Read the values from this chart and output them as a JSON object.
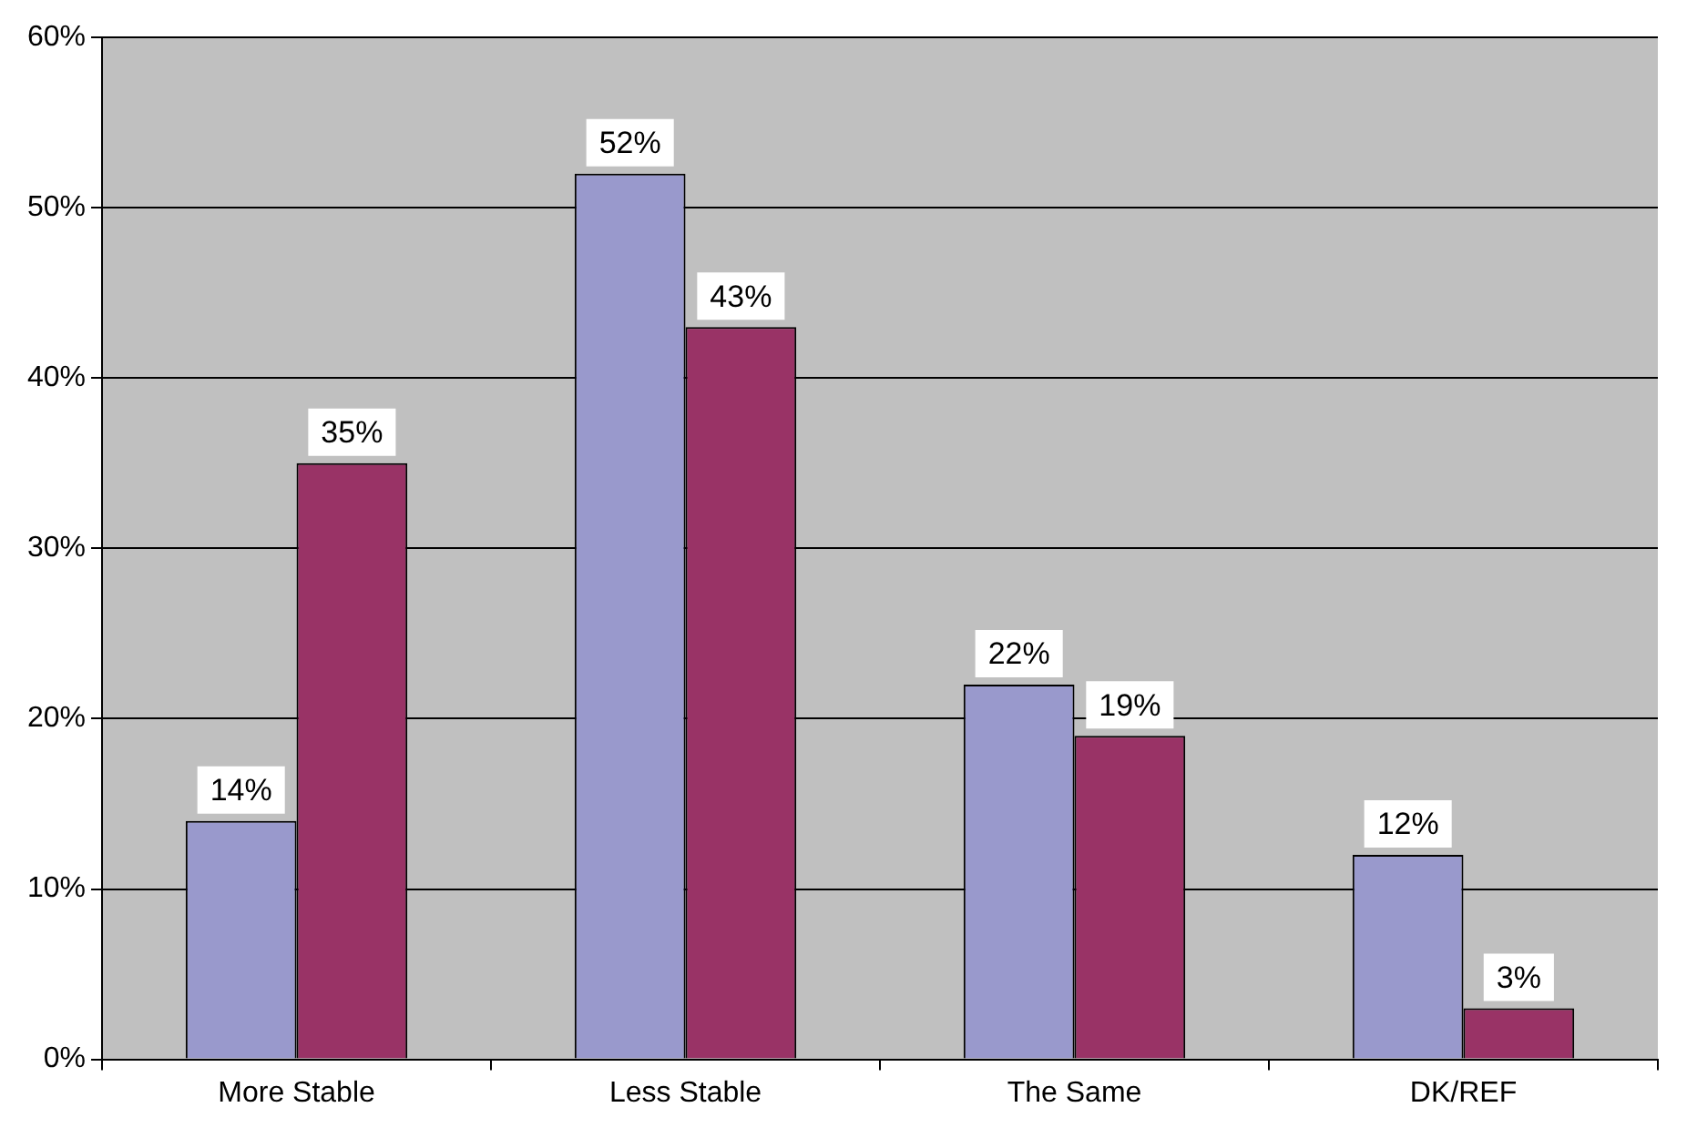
{
  "chart_data": {
    "type": "bar",
    "categories": [
      "More Stable",
      "Less Stable",
      "The Same",
      "DK/REF"
    ],
    "series": [
      {
        "color": "#9999cc",
        "values": [
          14,
          52,
          22,
          12
        ],
        "value_labels": [
          "14%",
          "52%",
          "22%",
          "12%"
        ]
      },
      {
        "color": "#993366",
        "values": [
          35,
          43,
          19,
          3
        ],
        "value_labels": [
          "35%",
          "43%",
          "19%",
          "3%"
        ]
      }
    ],
    "ylim": [
      0,
      60
    ],
    "yticks": [
      {
        "value": 0,
        "label": "0%"
      },
      {
        "value": 10,
        "label": "10%"
      },
      {
        "value": 20,
        "label": "20%"
      },
      {
        "value": 30,
        "label": "30%"
      },
      {
        "value": 40,
        "label": "40%"
      },
      {
        "value": 50,
        "label": "50%"
      },
      {
        "value": 60,
        "label": "60%"
      }
    ],
    "grid": "y",
    "legend": false
  }
}
